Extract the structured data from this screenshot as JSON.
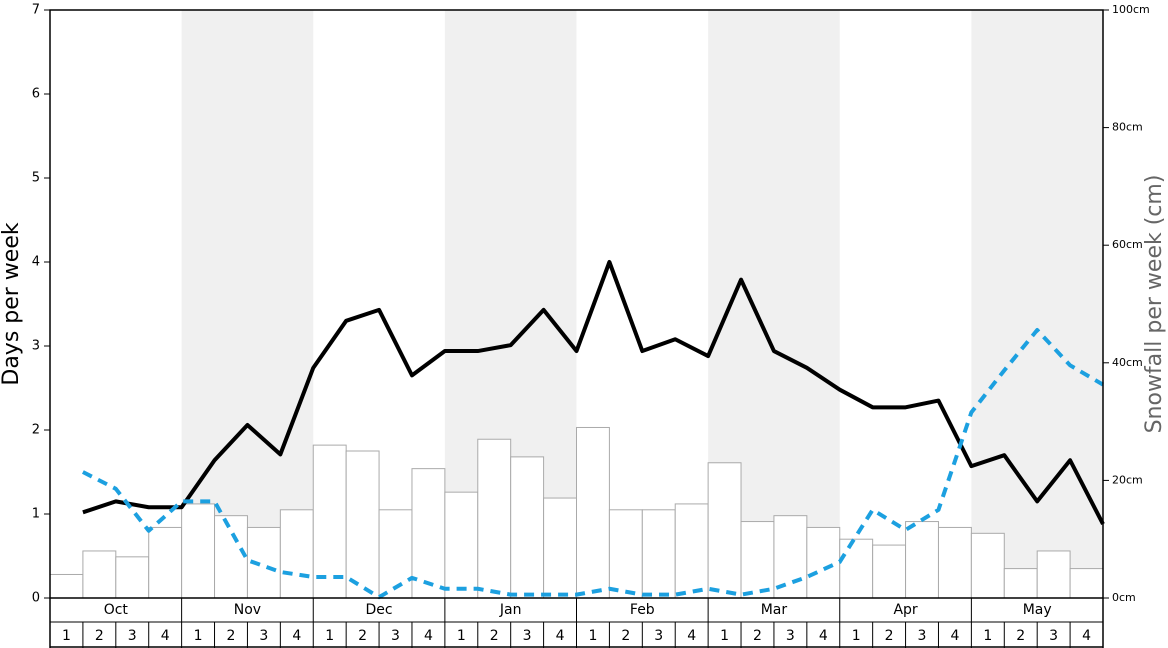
{
  "chart_data": {
    "type": "bar-line",
    "ylabel": "Days per week",
    "y2label": "Snowfall per week (cm)",
    "months": [
      "Oct",
      "Nov",
      "Dec",
      "Jan",
      "Feb",
      "Mar",
      "Apr",
      "May"
    ],
    "categories": [
      "1",
      "2",
      "3",
      "4",
      "1",
      "2",
      "3",
      "4",
      "1",
      "2",
      "3",
      "4",
      "1",
      "2",
      "3",
      "4",
      "1",
      "2",
      "3",
      "4",
      "1",
      "2",
      "3",
      "4",
      "1",
      "2",
      "3",
      "4",
      "1",
      "2",
      "3",
      "4"
    ],
    "ylim": [
      0,
      7
    ],
    "yticks": [
      0,
      1,
      2,
      3,
      4,
      5,
      6,
      7
    ],
    "y2lim": [
      0,
      100
    ],
    "y2ticks": [
      {
        "value": 0,
        "label": "0cm"
      },
      {
        "value": 20,
        "label": "20cm"
      },
      {
        "value": 40,
        "label": "40cm"
      },
      {
        "value": 60,
        "label": "60cm"
      },
      {
        "value": 80,
        "label": "80cm"
      },
      {
        "value": 100,
        "label": "100cm"
      }
    ],
    "series": [
      {
        "type": "bar",
        "axis": "y2",
        "color": "#ffffff",
        "edge": "#aaaaaa",
        "values": [
          4,
          8,
          7,
          12,
          16,
          14,
          12,
          15,
          26,
          25,
          15,
          22,
          18,
          27,
          24,
          17,
          29,
          15,
          15,
          16,
          23,
          13,
          14,
          12,
          10,
          9,
          13,
          12,
          11,
          5,
          8,
          5
        ]
      },
      {
        "type": "line",
        "color": "#000000",
        "values": [
          1.02,
          1.15,
          1.08,
          1.08,
          1.64,
          2.06,
          1.71,
          2.74,
          3.3,
          3.43,
          2.65,
          2.94,
          2.94,
          3.01,
          3.43,
          2.94,
          4.0,
          2.94,
          3.08,
          2.88,
          3.79,
          2.94,
          2.74,
          2.48,
          2.27,
          2.27,
          2.35,
          1.57,
          1.7,
          1.15,
          1.64,
          0.88
        ]
      },
      {
        "type": "line",
        "dashed": true,
        "color": "#1ca0e0",
        "values": [
          1.5,
          1.3,
          0.8,
          1.15,
          1.15,
          0.45,
          0.31,
          0.25,
          0.25,
          0.01,
          0.24,
          0.11,
          0.11,
          0.04,
          0.04,
          0.04,
          0.11,
          0.04,
          0.04,
          0.11,
          0.04,
          0.11,
          0.25,
          0.43,
          1.05,
          0.81,
          1.05,
          2.21,
          2.71,
          3.19,
          2.77,
          2.54
        ]
      }
    ]
  }
}
